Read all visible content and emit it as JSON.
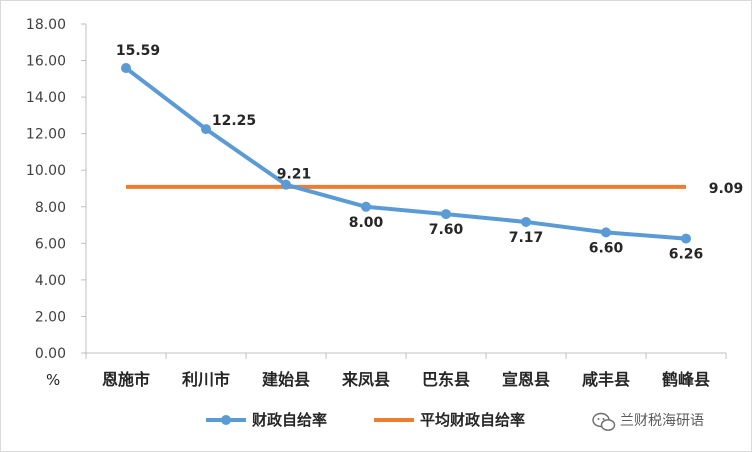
{
  "chart_data": {
    "type": "line",
    "categories": [
      "恩施市",
      "利川市",
      "建始县",
      "来凤县",
      "巴东县",
      "宣恩县",
      "咸丰县",
      "鹤峰县"
    ],
    "series": [
      {
        "name": "财政自给率",
        "values": [
          15.59,
          12.25,
          9.21,
          8.0,
          7.6,
          7.17,
          6.6,
          6.26
        ],
        "color": "#5b9bd5",
        "markers": true,
        "data_labels": true
      },
      {
        "name": "平均财政自给率",
        "values": [
          9.09,
          9.09,
          9.09,
          9.09,
          9.09,
          9.09,
          9.09,
          9.09
        ],
        "color": "#ed7d31",
        "markers": false,
        "end_label": "9.09"
      }
    ],
    "y_ticks": [
      "0.00",
      "2.00",
      "4.00",
      "6.00",
      "8.00",
      "10.00",
      "12.00",
      "14.00",
      "16.00",
      "18.00"
    ],
    "ylim": [
      0,
      18
    ],
    "y_unit_label": "%",
    "grid": false,
    "legend": "bottom"
  },
  "watermark": {
    "text": "兰财税海研语",
    "icon": "wechat-icon"
  }
}
